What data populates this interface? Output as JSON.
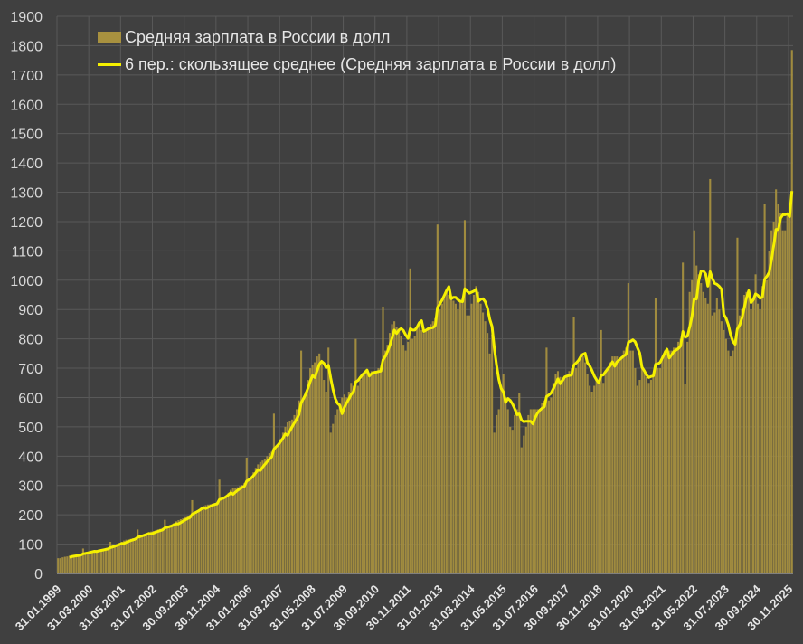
{
  "chart_data": {
    "type": "bar",
    "title": "",
    "xlabel": "",
    "ylabel": "",
    "ylim": [
      0,
      1900
    ],
    "yticks": [
      "0",
      "100",
      "200",
      "300",
      "400",
      "500",
      "600",
      "700",
      "800",
      "900",
      "1000",
      "1100",
      "1200",
      "1300",
      "1400",
      "1500",
      "1600",
      "1700",
      "1800",
      "1900"
    ],
    "x_start": "31.01.1999",
    "x_end": "31.12.2025",
    "frequency": "monthly",
    "xtick_labels": [
      "31.01.1999",
      "31.03.2000",
      "31.05.2001",
      "31.07.2002",
      "30.09.2003",
      "30.11.2004",
      "31.01.2006",
      "31.03.2007",
      "31.05.2008",
      "31.07.2009",
      "30.09.2010",
      "30.11.2011",
      "31.01.2013",
      "31.03.2014",
      "31.05.2015",
      "31.07.2016",
      "30.09.2017",
      "30.11.2018",
      "31.01.2020",
      "31.03.2021",
      "31.05.2022",
      "31.07.2023",
      "30.09.2024",
      "30.11.2025"
    ],
    "grid": true,
    "legend_position": "top-left",
    "series": [
      {
        "name": "Средняя зарплата в России в долл",
        "type": "bar",
        "color": "#a8913f",
        "values": [
          52,
          52,
          55,
          57,
          58,
          60,
          62,
          62,
          62,
          64,
          66,
          85,
          70,
          72,
          74,
          75,
          78,
          80,
          82,
          82,
          84,
          86,
          88,
          108,
          95,
          98,
          100,
          104,
          108,
          112,
          115,
          116,
          118,
          120,
          122,
          150,
          128,
          130,
          133,
          137,
          140,
          143,
          145,
          147,
          150,
          152,
          155,
          183,
          158,
          160,
          165,
          172,
          178,
          182,
          185,
          188,
          192,
          196,
          200,
          250,
          210,
          212,
          218,
          225,
          230,
          233,
          235,
          236,
          238,
          240,
          243,
          320,
          250,
          255,
          265,
          275,
          285,
          290,
          292,
          294,
          298,
          302,
          308,
          395,
          320,
          330,
          345,
          360,
          372,
          380,
          385,
          390,
          400,
          410,
          415,
          545,
          430,
          440,
          460,
          480,
          500,
          515,
          520,
          525,
          540,
          560,
          590,
          760,
          600,
          620,
          660,
          700,
          710,
          720,
          740,
          750,
          720,
          660,
          620,
          770,
          480,
          510,
          540,
          560,
          580,
          600,
          610,
          600,
          620,
          650,
          640,
          800,
          640,
          660,
          680,
          690,
          690,
          680,
          690,
          680,
          690,
          700,
          700,
          910,
          760,
          780,
          820,
          850,
          860,
          840,
          830,
          810,
          780,
          760,
          790,
          1040,
          800,
          810,
          840,
          850,
          830,
          820,
          830,
          840,
          850,
          860,
          870,
          1190,
          900,
          920,
          950,
          960,
          950,
          940,
          930,
          920,
          900,
          930,
          940,
          1205,
          880,
          880,
          920,
          950,
          980,
          960,
          920,
          890,
          860,
          820,
          750,
          815,
          480,
          540,
          560,
          640,
          680,
          600,
          560,
          500,
          490,
          540,
          560,
          615,
          430,
          470,
          500,
          540,
          560,
          560,
          560,
          560,
          560,
          580,
          590,
          770,
          590,
          600,
          650,
          680,
          690,
          670,
          660,
          670,
          670,
          690,
          700,
          875,
          700,
          720,
          750,
          740,
          720,
          680,
          640,
          620,
          640,
          660,
          660,
          830,
          650,
          690,
          700,
          720,
          740,
          740,
          740,
          730,
          740,
          760,
          770,
          990,
          760,
          760,
          700,
          640,
          660,
          700,
          690,
          670,
          650,
          660,
          670,
          940,
          700,
          700,
          740,
          760,
          750,
          760,
          760,
          770,
          770,
          790,
          800,
          1060,
          645,
          790,
          960,
          1000,
          1170,
          1050,
          1020,
          990,
          960,
          940,
          920,
          1345,
          880,
          890,
          940,
          900,
          860,
          830,
          800,
          760,
          740,
          760,
          800,
          1145,
          880,
          900,
          950,
          960,
          950,
          900,
          940,
          1020,
          920,
          900,
          980,
          1260,
          1000,
          1100,
          1170,
          1200,
          1310,
          1260,
          1230,
          1170,
          1170,
          1220,
          1250,
          1785
        ]
      },
      {
        "name": "6 пер.: скользящее среднее (Средняя зарплата в России в долл)",
        "type": "line",
        "color": "#f5f000",
        "moving_average_period": 6
      }
    ]
  }
}
